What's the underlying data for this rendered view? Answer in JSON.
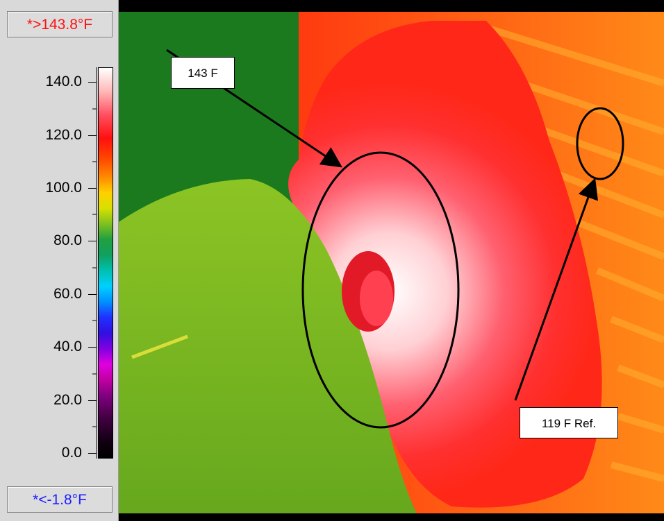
{
  "scale": {
    "max_label": "*>143.8°F",
    "min_label": "*<-1.8°F",
    "ticks": [
      "140.0",
      "120.0",
      "100.0",
      "80.0",
      "60.0",
      "40.0",
      "20.0",
      "0.0"
    ]
  },
  "annotations": {
    "hotspot_label": "143 F",
    "reference_label": "119 F Ref."
  },
  "colors": {
    "max_text": "#ff1010",
    "min_text": "#2020ff",
    "hot": "#ff2020",
    "background_green": "#1f7a1f",
    "tube_green": "#74b51f"
  }
}
